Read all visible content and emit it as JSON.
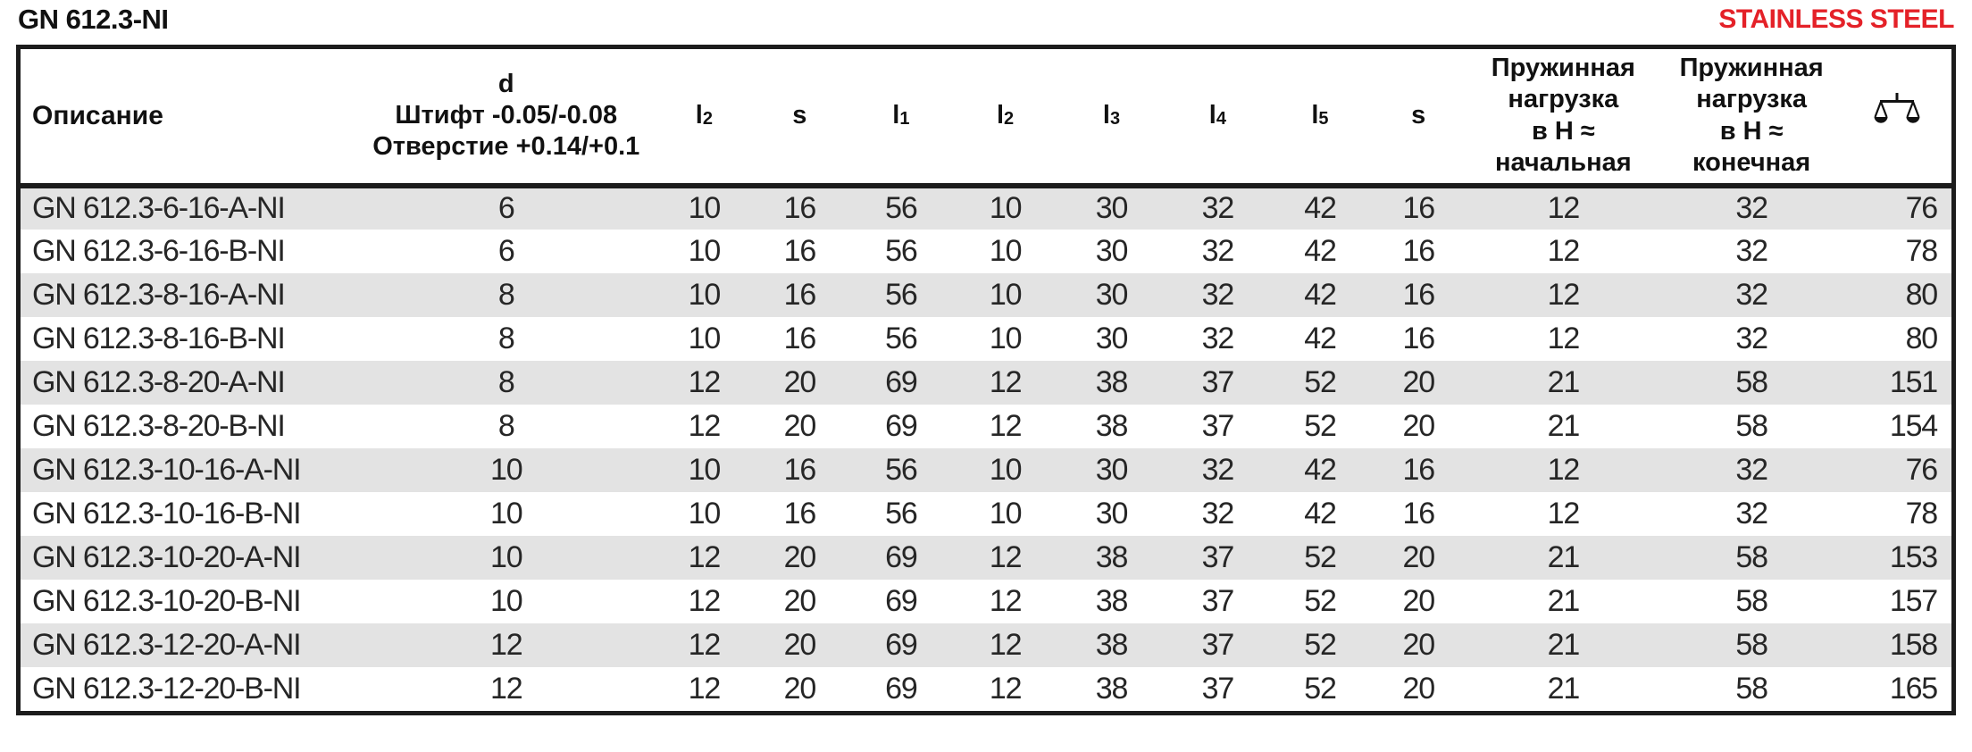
{
  "page": {
    "title": "GN 612.3-NI",
    "badge": "STAINLESS STEEL",
    "badge_color": "#e42128"
  },
  "table": {
    "colors": {
      "row_alt": "#e3e3e3",
      "border": "#1c1c1c"
    },
    "columns": {
      "description": "Описание",
      "d": {
        "line1": "d",
        "line2": "Штифт -0.05/-0.08",
        "line3": "Отверстие +0.14/+0.1"
      },
      "dims": [
        {
          "base": "l",
          "sub": "2"
        },
        {
          "base": "s",
          "sub": ""
        },
        {
          "base": "l",
          "sub": "1"
        },
        {
          "base": "l",
          "sub": "2"
        },
        {
          "base": "l",
          "sub": "3"
        },
        {
          "base": "l",
          "sub": "4"
        },
        {
          "base": "l",
          "sub": "5"
        },
        {
          "base": "s",
          "sub": ""
        }
      ],
      "spring_load_initial": "Пружинная\nнагрузка\nв Н ≈\nначальная",
      "spring_load_final": "Пружинная\nнагрузка\nв Н ≈\nконечная",
      "weight_icon": "scale-icon"
    },
    "rows": [
      {
        "name": "GN 612.3-6-16-A-NI",
        "values": [
          "6",
          "10",
          "16",
          "56",
          "10",
          "30",
          "32",
          "42",
          "16",
          "12",
          "32",
          "76"
        ]
      },
      {
        "name": "GN 612.3-6-16-B-NI",
        "values": [
          "6",
          "10",
          "16",
          "56",
          "10",
          "30",
          "32",
          "42",
          "16",
          "12",
          "32",
          "78"
        ]
      },
      {
        "name": "GN 612.3-8-16-A-NI",
        "values": [
          "8",
          "10",
          "16",
          "56",
          "10",
          "30",
          "32",
          "42",
          "16",
          "12",
          "32",
          "80"
        ]
      },
      {
        "name": "GN 612.3-8-16-B-NI",
        "values": [
          "8",
          "10",
          "16",
          "56",
          "10",
          "30",
          "32",
          "42",
          "16",
          "12",
          "32",
          "80"
        ]
      },
      {
        "name": "GN 612.3-8-20-A-NI",
        "values": [
          "8",
          "12",
          "20",
          "69",
          "12",
          "38",
          "37",
          "52",
          "20",
          "21",
          "58",
          "151"
        ]
      },
      {
        "name": "GN 612.3-8-20-B-NI",
        "values": [
          "8",
          "12",
          "20",
          "69",
          "12",
          "38",
          "37",
          "52",
          "20",
          "21",
          "58",
          "154"
        ]
      },
      {
        "name": "GN 612.3-10-16-A-NI",
        "values": [
          "10",
          "10",
          "16",
          "56",
          "10",
          "30",
          "32",
          "42",
          "16",
          "12",
          "32",
          "76"
        ]
      },
      {
        "name": "GN 612.3-10-16-B-NI",
        "values": [
          "10",
          "10",
          "16",
          "56",
          "10",
          "30",
          "32",
          "42",
          "16",
          "12",
          "32",
          "78"
        ]
      },
      {
        "name": "GN 612.3-10-20-A-NI",
        "values": [
          "10",
          "12",
          "20",
          "69",
          "12",
          "38",
          "37",
          "52",
          "20",
          "21",
          "58",
          "153"
        ]
      },
      {
        "name": "GN 612.3-10-20-B-NI",
        "values": [
          "10",
          "12",
          "20",
          "69",
          "12",
          "38",
          "37",
          "52",
          "20",
          "21",
          "58",
          "157"
        ]
      },
      {
        "name": "GN 612.3-12-20-A-NI",
        "values": [
          "12",
          "12",
          "20",
          "69",
          "12",
          "38",
          "37",
          "52",
          "20",
          "21",
          "58",
          "158"
        ]
      },
      {
        "name": "GN 612.3-12-20-B-NI",
        "values": [
          "12",
          "12",
          "20",
          "69",
          "12",
          "38",
          "37",
          "52",
          "20",
          "21",
          "58",
          "165"
        ]
      }
    ]
  }
}
